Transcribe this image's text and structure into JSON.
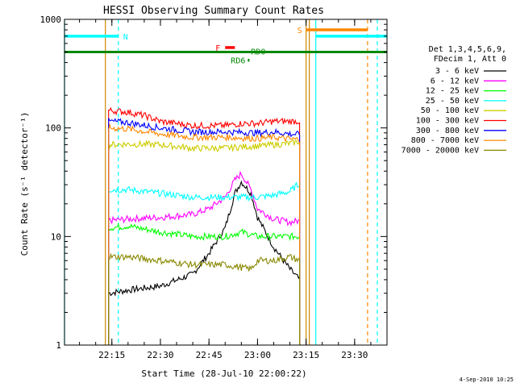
{
  "chart_data": {
    "type": "line",
    "title": "HESSI Observing Summary Count Rates",
    "xlabel": "Start Time (28-Jul-10 22:00:22)",
    "ylabel": "Count Rate (s⁻¹ detector⁻¹)",
    "yscale": "log",
    "ylim": [
      1,
      1000
    ],
    "xlim": [
      "22:00:22",
      "23:40:00"
    ],
    "x_tick_labels": [
      "22:15",
      "22:30",
      "22:45",
      "23:00",
      "23:15",
      "23:30"
    ],
    "x_ticks": [
      "22:15",
      "22:30",
      "22:45",
      "23:00",
      "23:15",
      "23:30"
    ],
    "y_tick_labels": [
      "1",
      "10",
      "100",
      "1000"
    ],
    "y_ticks": [
      1,
      10,
      100,
      1000
    ],
    "legend_header": [
      "Det 1,3,4,5,6,9,",
      "FDecim 1, Att 0"
    ],
    "legend_position": "right",
    "series": [
      {
        "name": "3 - 6 keV",
        "color": "#000000",
        "x": [
          "22:14",
          "22:20",
          "22:30",
          "22:40",
          "22:45",
          "22:50",
          "22:53",
          "22:55",
          "22:58",
          "23:00",
          "23:05",
          "23:10",
          "23:13"
        ],
        "values": [
          3,
          3.2,
          3.5,
          4.5,
          7,
          12,
          25,
          32,
          25,
          15,
          8,
          5,
          4
        ]
      },
      {
        "name": "6 - 12 keV",
        "color": "#ff00ff",
        "x": [
          "22:14",
          "22:20",
          "22:30",
          "22:40",
          "22:45",
          "22:50",
          "22:53",
          "22:55",
          "22:58",
          "23:00",
          "23:05",
          "23:10",
          "23:13"
        ],
        "values": [
          14,
          14.5,
          15,
          16,
          18,
          23,
          33,
          38,
          27,
          18,
          14.5,
          13.5,
          14
        ]
      },
      {
        "name": "12 - 25 keV",
        "color": "#00ff00",
        "x": [
          "22:14",
          "22:20",
          "22:30",
          "22:40",
          "22:50",
          "22:55",
          "23:00",
          "23:05",
          "23:10",
          "23:13"
        ],
        "values": [
          12,
          12.5,
          11,
          10,
          10,
          11,
          10,
          10,
          10,
          10
        ]
      },
      {
        "name": "25 - 50 keV",
        "color": "#00ffff",
        "x": [
          "22:14",
          "22:20",
          "22:30",
          "22:40",
          "22:50",
          "23:00",
          "23:05",
          "23:10",
          "23:13"
        ],
        "values": [
          27,
          27,
          25,
          23,
          23,
          23,
          24,
          26,
          31
        ]
      },
      {
        "name": "50 - 100 keV",
        "color": "#cccc00",
        "x": [
          "22:14",
          "22:20",
          "22:30",
          "22:40",
          "22:50",
          "22:55",
          "23:00",
          "23:05",
          "23:10",
          "23:13"
        ],
        "values": [
          70,
          71,
          70,
          65,
          65,
          67,
          68,
          70,
          72,
          75
        ]
      },
      {
        "name": "100 - 300 keV",
        "color": "#ff0000",
        "x": [
          "22:14",
          "22:20",
          "22:25",
          "22:30",
          "22:35",
          "22:40",
          "22:50",
          "22:55",
          "23:00",
          "23:05",
          "23:10",
          "23:13"
        ],
        "values": [
          145,
          140,
          130,
          115,
          110,
          105,
          105,
          110,
          110,
          115,
          115,
          115
        ]
      },
      {
        "name": "300 - 800 keV",
        "color": "#0000ff",
        "x": [
          "22:14",
          "22:20",
          "22:30",
          "22:40",
          "22:50",
          "23:00",
          "23:05",
          "23:10",
          "23:13"
        ],
        "values": [
          115,
          112,
          100,
          92,
          92,
          90,
          92,
          88,
          87
        ]
      },
      {
        "name": "800 - 7000 keV",
        "color": "#ff8800",
        "x": [
          "22:14",
          "22:20",
          "22:30",
          "22:40",
          "22:50",
          "23:00",
          "23:05",
          "23:10",
          "23:13"
        ],
        "values": [
          100,
          98,
          88,
          82,
          82,
          80,
          82,
          79,
          78
        ]
      },
      {
        "name": "7000 - 20000 keV",
        "color": "#888800",
        "x": [
          "22:14",
          "22:20",
          "22:30",
          "22:40",
          "22:50",
          "22:58",
          "23:00",
          "23:05",
          "23:10",
          "23:13"
        ],
        "values": [
          6.5,
          6.5,
          6,
          5.5,
          5.5,
          5,
          6,
          6,
          6.5,
          6
        ]
      }
    ],
    "flag_bars": [
      {
        "label": "N",
        "color": "#00ffff",
        "value": 700,
        "segments": [
          [
            "22:00:22",
            "22:17"
          ],
          [
            "23:18",
            "23:40"
          ]
        ]
      },
      {
        "label": "S",
        "color": "#ff8800",
        "value": 800,
        "segments": [
          [
            "23:15",
            "23:34"
          ]
        ]
      },
      {
        "label": "F",
        "color": "#ff0000",
        "value": 550,
        "segments": [
          [
            "22:50",
            "22:53"
          ]
        ]
      },
      {
        "label": "RD0",
        "color": "#008800",
        "value": 500,
        "segments": []
      },
      {
        "label": "RD6",
        "color": "#008800",
        "value": 420,
        "segments": [
          [
            "22:57",
            "22:57:30"
          ]
        ]
      }
    ],
    "reference_line": {
      "color": "#008800",
      "value": 500
    },
    "vertical_lines": [
      {
        "x": "22:00:22",
        "color": "#00ffff",
        "style": "solid"
      },
      {
        "x": "22:17",
        "color": "#00ffff",
        "style": "dashed"
      },
      {
        "x": "22:13",
        "color": "#cc8800",
        "style": "solid"
      },
      {
        "x": "23:15",
        "color": "#cc8800",
        "style": "solid"
      },
      {
        "x": "23:16",
        "color": "#cc8800",
        "style": "solid"
      },
      {
        "x": "23:18",
        "color": "#00ffff",
        "style": "solid"
      },
      {
        "x": "23:34",
        "color": "#ff8800",
        "style": "dashed"
      },
      {
        "x": "23:37",
        "color": "#00ffff",
        "style": "dashed"
      }
    ],
    "timestamp": "4-Sep-2010 10:25"
  }
}
